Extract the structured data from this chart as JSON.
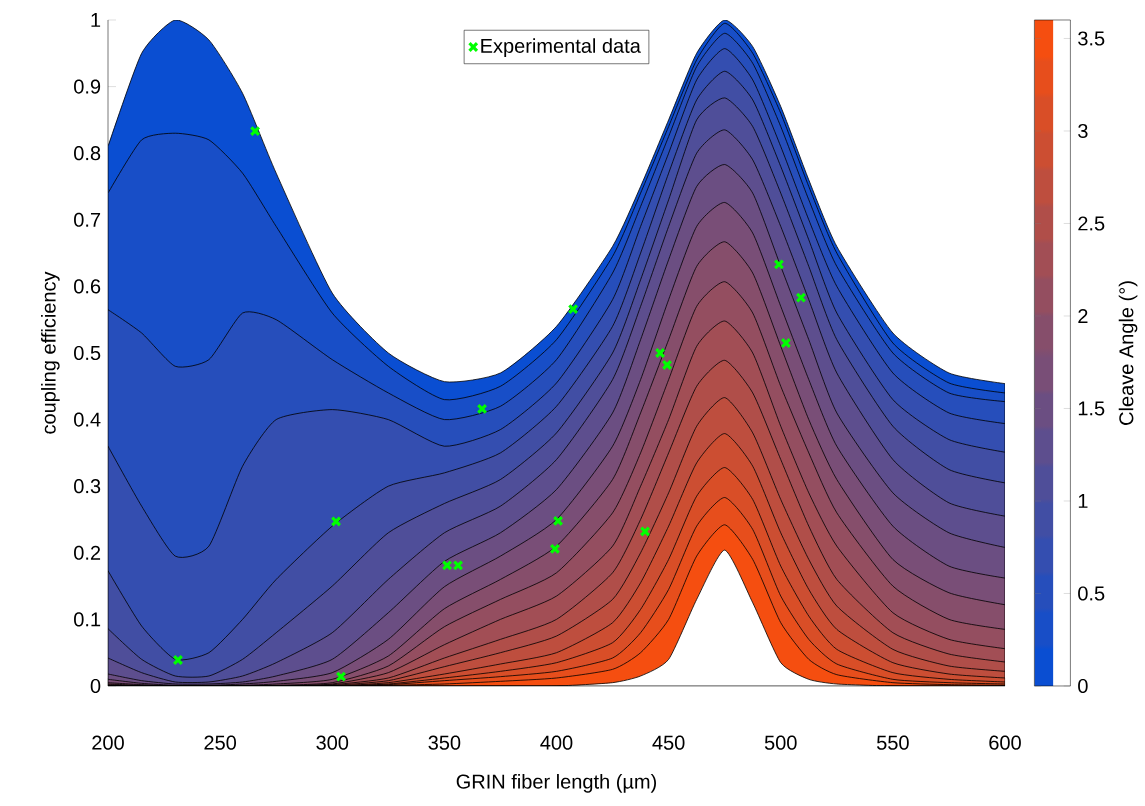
{
  "chart_data": {
    "type": "area",
    "xlabel": "GRIN fiber length (µm)",
    "ylabel": "coupling efficiency",
    "clabel": "Cleave Angle (°)",
    "x": [
      200,
      215,
      230,
      245,
      260,
      275,
      300,
      325,
      350,
      375,
      400,
      425,
      437.5,
      450,
      462.5,
      475,
      487.5,
      500,
      512.5,
      525,
      550,
      575,
      600
    ],
    "series": [
      {
        "color": "#0a4ed2",
        "values": [
          0.81,
          0.95,
          1.0,
          0.97,
          0.89,
          0.77,
          0.59,
          0.5,
          0.457,
          0.47,
          0.54,
          0.66,
          0.75,
          0.85,
          0.95,
          1.0,
          0.96,
          0.87,
          0.76,
          0.66,
          0.53,
          0.47,
          0.454
        ]
      },
      {
        "color": "#184ec7",
        "values": [
          0.74,
          0.82,
          0.83,
          0.82,
          0.77,
          0.69,
          0.56,
          0.48,
          0.43,
          0.45,
          0.52,
          0.645,
          0.74,
          0.84,
          0.94,
          0.995,
          0.95,
          0.86,
          0.75,
          0.65,
          0.515,
          0.455,
          0.44
        ]
      },
      {
        "color": "#264ebb",
        "values": [
          0.565,
          0.53,
          0.48,
          0.49,
          0.56,
          0.55,
          0.49,
          0.44,
          0.4,
          0.42,
          0.49,
          0.62,
          0.72,
          0.825,
          0.93,
          0.98,
          0.935,
          0.84,
          0.73,
          0.63,
          0.5,
          0.44,
          0.427
        ]
      },
      {
        "color": "#344eb0",
        "values": [
          0.36,
          0.27,
          0.195,
          0.21,
          0.33,
          0.4,
          0.415,
          0.4,
          0.36,
          0.385,
          0.455,
          0.58,
          0.69,
          0.8,
          0.91,
          0.957,
          0.91,
          0.81,
          0.7,
          0.6,
          0.47,
          0.41,
          0.394
        ]
      },
      {
        "color": "#414ea4",
        "values": [
          0.173,
          0.09,
          0.04,
          0.05,
          0.1,
          0.16,
          0.24,
          0.3,
          0.32,
          0.35,
          0.42,
          0.54,
          0.65,
          0.77,
          0.88,
          0.923,
          0.88,
          0.78,
          0.67,
          0.56,
          0.43,
          0.37,
          0.351
        ]
      },
      {
        "color": "#4f4e99",
        "values": [
          0.086,
          0.04,
          0.015,
          0.015,
          0.04,
          0.08,
          0.15,
          0.23,
          0.274,
          0.31,
          0.38,
          0.5,
          0.61,
          0.73,
          0.85,
          0.883,
          0.84,
          0.74,
          0.63,
          0.52,
          0.39,
          0.325,
          0.305
        ]
      },
      {
        "color": "#5d4e8e",
        "values": [
          0.042,
          0.02,
          0.006,
          0.006,
          0.015,
          0.035,
          0.08,
          0.16,
          0.23,
          0.27,
          0.34,
          0.46,
          0.57,
          0.69,
          0.8,
          0.835,
          0.79,
          0.69,
          0.58,
          0.47,
          0.34,
          0.275,
          0.255
        ]
      },
      {
        "color": "#6b4e82",
        "values": [
          0.018,
          0.008,
          0.003,
          0.003,
          0.006,
          0.015,
          0.04,
          0.11,
          0.187,
          0.23,
          0.295,
          0.41,
          0.52,
          0.64,
          0.75,
          0.783,
          0.74,
          0.63,
          0.52,
          0.41,
          0.29,
          0.23,
          0.208
        ]
      },
      {
        "color": "#794e77",
        "values": [
          0.01,
          0.004,
          0.001,
          0.001,
          0.003,
          0.007,
          0.02,
          0.07,
          0.149,
          0.195,
          0.25,
          0.36,
          0.46,
          0.58,
          0.69,
          0.726,
          0.68,
          0.57,
          0.46,
          0.36,
          0.24,
          0.18,
          0.162
        ]
      },
      {
        "color": "#864e6b",
        "values": [
          0.005,
          0.002,
          0,
          0,
          0.001,
          0.003,
          0.01,
          0.045,
          0.116,
          0.16,
          0.21,
          0.31,
          0.41,
          0.52,
          0.63,
          0.667,
          0.62,
          0.51,
          0.4,
          0.31,
          0.19,
          0.14,
          0.122
        ]
      },
      {
        "color": "#944e60",
        "values": [
          0.003,
          0.001,
          0,
          0,
          0,
          0.001,
          0.005,
          0.03,
          0.089,
          0.13,
          0.17,
          0.26,
          0.35,
          0.46,
          0.57,
          0.607,
          0.56,
          0.45,
          0.35,
          0.26,
          0.15,
          0.1,
          0.085
        ]
      },
      {
        "color": "#a24e55",
        "values": [
          0.002,
          0,
          0,
          0,
          0,
          0,
          0.003,
          0.02,
          0.062,
          0.1,
          0.135,
          0.21,
          0.3,
          0.4,
          0.51,
          0.548,
          0.5,
          0.39,
          0.29,
          0.21,
          0.11,
          0.07,
          0.056
        ]
      },
      {
        "color": "#b04e49",
        "values": [
          0.001,
          0,
          0,
          0,
          0,
          0,
          0.002,
          0.012,
          0.042,
          0.07,
          0.1,
          0.17,
          0.25,
          0.35,
          0.45,
          0.489,
          0.44,
          0.34,
          0.24,
          0.16,
          0.08,
          0.048,
          0.036
        ]
      },
      {
        "color": "#be4e3e",
        "values": [
          0,
          0,
          0,
          0,
          0,
          0,
          0.001,
          0.008,
          0.029,
          0.05,
          0.075,
          0.13,
          0.2,
          0.29,
          0.39,
          0.433,
          0.38,
          0.28,
          0.19,
          0.12,
          0.055,
          0.03,
          0.022
        ]
      },
      {
        "color": "#cc4e32",
        "values": [
          0,
          0,
          0,
          0,
          0,
          0,
          0,
          0.005,
          0.018,
          0.033,
          0.05,
          0.095,
          0.155,
          0.24,
          0.335,
          0.379,
          0.33,
          0.23,
          0.145,
          0.085,
          0.035,
          0.018,
          0.012
        ]
      },
      {
        "color": "#d94e27",
        "values": [
          0,
          0,
          0,
          0,
          0,
          0,
          0,
          0.003,
          0.012,
          0.022,
          0.035,
          0.065,
          0.115,
          0.19,
          0.285,
          0.328,
          0.28,
          0.18,
          0.105,
          0.055,
          0.02,
          0.01,
          0.006
        ]
      },
      {
        "color": "#e74e1c",
        "values": [
          0,
          0,
          0,
          0,
          0,
          0,
          0,
          0.002,
          0.008,
          0.014,
          0.022,
          0.042,
          0.08,
          0.145,
          0.24,
          0.283,
          0.235,
          0.135,
          0.07,
          0.033,
          0.01,
          0.005,
          0.003
        ]
      },
      {
        "color": "#f54e10",
        "values": [
          0,
          0,
          0,
          0,
          0,
          0,
          0,
          0.001,
          0.003,
          0.007,
          0.012,
          0.025,
          0.05,
          0.1,
          0.195,
          0.242,
          0.19,
          0.095,
          0.04,
          0.017,
          0.005,
          0.002,
          0.001
        ]
      },
      {
        "color": "#ffffff",
        "values": [
          0,
          0,
          0,
          0,
          0,
          0,
          0,
          0,
          0,
          0,
          0,
          0.005,
          0.015,
          0.04,
          0.13,
          0.204,
          0.125,
          0.035,
          0.01,
          0.003,
          0,
          0,
          0
        ]
      },
      {
        "type": "scatter",
        "name": "Experimental data",
        "color": "#00ff00",
        "marker": "cross",
        "x": [
          231.2,
          265.6,
          301.7,
          303.9,
          351.2,
          356.1,
          366.8,
          399.3,
          400.7,
          407.4,
          439.5,
          446.2,
          449.3,
          499.2,
          502.3,
          509.0
        ],
        "values": [
          0.039,
          0.833,
          0.247,
          0.014,
          0.181,
          0.181,
          0.416,
          0.206,
          0.248,
          0.566,
          0.232,
          0.5,
          0.482,
          0.633,
          0.515,
          0.583
        ]
      }
    ],
    "xlim": [
      200,
      600
    ],
    "xticks": [
      200,
      250,
      300,
      350,
      400,
      450,
      500,
      550,
      600
    ],
    "ylim": [
      0,
      1
    ],
    "yticks": [
      0,
      0.1,
      0.2,
      0.3,
      0.4,
      0.5,
      0.6,
      0.7,
      0.8,
      0.9,
      1
    ],
    "clim": [
      0,
      3.6
    ],
    "cticks": [
      0,
      0.5,
      1,
      1.5,
      2,
      2.5,
      3,
      3.5
    ],
    "legend": "top"
  }
}
